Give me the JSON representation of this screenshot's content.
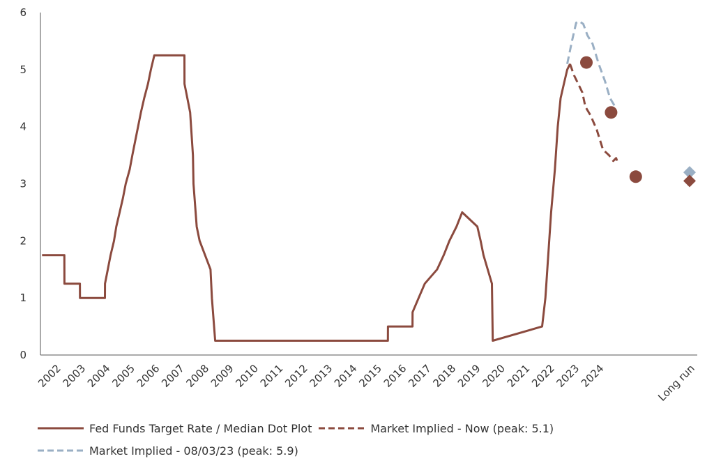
{
  "chart_data": {
    "type": "line",
    "title": "",
    "xlabel": "",
    "ylabel": "",
    "ylim": [
      0,
      6
    ],
    "yticks": [
      "0",
      "1",
      "2",
      "3",
      "4",
      "5",
      "6"
    ],
    "x_tick_labels": [
      "2002",
      "2003",
      "2004",
      "2005",
      "2006",
      "2007",
      "2008",
      "2009",
      "2010",
      "2011",
      "2012",
      "2013",
      "2014",
      "2015",
      "2016",
      "2017",
      "2018",
      "2019",
      "2020",
      "2021",
      "2022",
      "2023",
      "2024",
      "Long run"
    ],
    "grid": false,
    "legend_position": "bottom",
    "series": [
      {
        "name": "Fed Funds Target Rate / Median Dot Plot",
        "style": "solid",
        "color": "#8B4A3E",
        "points": [
          [
            "2001-12-11",
            1.75
          ],
          [
            "2002-11-06",
            1.75
          ],
          [
            "2002-11-07",
            1.25
          ],
          [
            "2003-06-24",
            1.25
          ],
          [
            "2003-06-25",
            1.0
          ],
          [
            "2004-06-29",
            1.0
          ],
          [
            "2004-06-30",
            1.25
          ],
          [
            "2004-08-10",
            1.5
          ],
          [
            "2004-09-21",
            1.75
          ],
          [
            "2004-11-10",
            2.0
          ],
          [
            "2004-12-14",
            2.25
          ],
          [
            "2005-02-02",
            2.5
          ],
          [
            "2005-03-22",
            2.75
          ],
          [
            "2005-05-03",
            3.0
          ],
          [
            "2005-06-30",
            3.25
          ],
          [
            "2005-08-09",
            3.5
          ],
          [
            "2005-09-20",
            3.75
          ],
          [
            "2005-11-01",
            4.0
          ],
          [
            "2005-12-13",
            4.25
          ],
          [
            "2006-01-31",
            4.5
          ],
          [
            "2006-03-28",
            4.75
          ],
          [
            "2006-05-10",
            5.0
          ],
          [
            "2006-06-29",
            5.25
          ],
          [
            "2007-09-18",
            5.25
          ],
          [
            "2007-09-19",
            4.75
          ],
          [
            "2007-10-31",
            4.5
          ],
          [
            "2007-12-11",
            4.25
          ],
          [
            "2008-01-22",
            3.5
          ],
          [
            "2008-01-30",
            3.0
          ],
          [
            "2008-03-18",
            2.25
          ],
          [
            "2008-04-30",
            2.0
          ],
          [
            "2008-10-08",
            1.5
          ],
          [
            "2008-10-29",
            1.0
          ],
          [
            "2008-12-16",
            0.25
          ],
          [
            "2015-12-16",
            0.25
          ],
          [
            "2015-12-17",
            0.5
          ],
          [
            "2016-12-14",
            0.5
          ],
          [
            "2016-12-15",
            0.75
          ],
          [
            "2017-03-15",
            1.0
          ],
          [
            "2017-06-14",
            1.25
          ],
          [
            "2017-12-13",
            1.5
          ],
          [
            "2018-03-21",
            1.75
          ],
          [
            "2018-06-13",
            2.0
          ],
          [
            "2018-09-26",
            2.25
          ],
          [
            "2018-12-19",
            2.5
          ],
          [
            "2019-07-31",
            2.25
          ],
          [
            "2019-09-18",
            2.0
          ],
          [
            "2019-10-30",
            1.75
          ],
          [
            "2020-03-03",
            1.25
          ],
          [
            "2020-03-15",
            0.25
          ],
          [
            "2022-03-16",
            0.5
          ],
          [
            "2022-05-04",
            1.0
          ],
          [
            "2022-06-15",
            1.75
          ],
          [
            "2022-07-27",
            2.5
          ],
          [
            "2022-09-21",
            3.25
          ],
          [
            "2022-11-02",
            4.0
          ],
          [
            "2022-12-14",
            4.5
          ],
          [
            "2023-02-01",
            4.75
          ],
          [
            "2023-03-22",
            5.0
          ],
          [
            "2023-05-03",
            5.1
          ]
        ]
      },
      {
        "name": "Market Implied - Now (peak: 5.1)",
        "style": "dashed",
        "color": "#8B4A3E",
        "points": [
          [
            "2023-05-03",
            5.1
          ],
          [
            "2023-07-01",
            4.9
          ],
          [
            "2023-09-01",
            4.75
          ],
          [
            "2023-11-01",
            4.6
          ],
          [
            "2023-12-15",
            4.35
          ],
          [
            "2024-03-01",
            4.2
          ],
          [
            "2024-06-01",
            3.95
          ],
          [
            "2024-09-01",
            3.6
          ],
          [
            "2024-12-01",
            3.5
          ],
          [
            "2025-02-01",
            3.4
          ],
          [
            "2025-03-15",
            3.45
          ],
          [
            "2025-04-15",
            3.35
          ]
        ]
      },
      {
        "name": "Market Implied - 08/03/23 (peak: 5.9)",
        "style": "dashed",
        "color": "#9AAFC4",
        "points": [
          [
            "2023-03-22",
            5.1
          ],
          [
            "2023-06-01",
            5.5
          ],
          [
            "2023-08-01",
            5.82
          ],
          [
            "2023-09-15",
            5.85
          ],
          [
            "2023-11-15",
            5.8
          ],
          [
            "2024-01-15",
            5.6
          ],
          [
            "2024-04-01",
            5.45
          ],
          [
            "2024-07-01",
            5.1
          ],
          [
            "2024-10-01",
            4.8
          ],
          [
            "2024-12-15",
            4.5
          ],
          [
            "2025-03-01",
            4.35
          ]
        ]
      }
    ],
    "dot_plot": {
      "circles": [
        {
          "x": "2023-12-31",
          "y": 5.125
        },
        {
          "x": "2024-12-31",
          "y": 4.25
        },
        {
          "x": "2025-12-31",
          "y": 3.125
        }
      ],
      "long_run_markers": [
        {
          "x": "Long run",
          "y": 3.2,
          "color": "#9AAFC4"
        },
        {
          "x": "Long run",
          "y": 3.05,
          "color": "#8B4A3E"
        }
      ]
    }
  },
  "legend": {
    "items": [
      {
        "label": "Fed Funds Target Rate / Median Dot Plot",
        "style": "solid",
        "color": "#8B4A3E"
      },
      {
        "label": "Market Implied - Now (peak: 5.1)",
        "style": "dashed",
        "color": "#8B4A3E"
      },
      {
        "label": "Market Implied - 08/03/23 (peak: 5.9)",
        "style": "dashed",
        "color": "#9AAFC4"
      }
    ]
  }
}
